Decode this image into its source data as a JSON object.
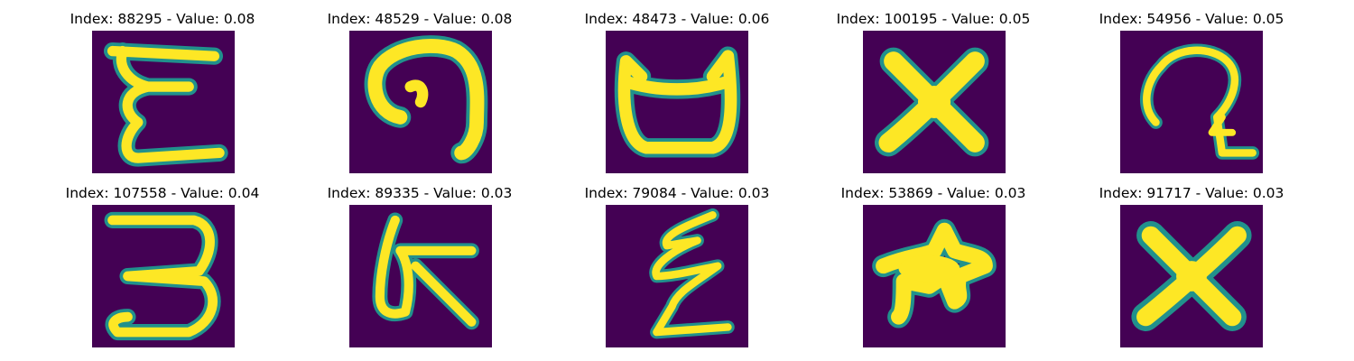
{
  "figure": {
    "background_color": "#ffffff",
    "colormap": [
      "#440154",
      "#3b528b",
      "#21918c",
      "#5ec962",
      "#fde725"
    ],
    "panels": [
      {
        "index": "88295",
        "value": "0.08",
        "title": "Index: 88295 - Value: 0.08",
        "glyph": "epsilon-like character"
      },
      {
        "index": "48529",
        "value": "0.08",
        "title": "Index: 48529 - Value: 0.08",
        "glyph": "hook curve"
      },
      {
        "index": "48473",
        "value": "0.06",
        "title": "Index: 48473 - Value: 0.06",
        "glyph": "cup shape"
      },
      {
        "index": "100195",
        "value": "0.05",
        "title": "Index: 100195 - Value: 0.05",
        "glyph": "x cross"
      },
      {
        "index": "54956",
        "value": "0.05",
        "title": "Index: 54956 - Value: 0.05",
        "glyph": "loop with tail"
      },
      {
        "index": "107558",
        "value": "0.04",
        "title": "Index: 107558 - Value: 0.04",
        "glyph": "number 3 like"
      },
      {
        "index": "89335",
        "value": "0.03",
        "title": "Index: 89335 - Value: 0.03",
        "glyph": "symbol with stem"
      },
      {
        "index": "79084",
        "value": "0.03",
        "title": "Index: 79084 - Value: 0.03",
        "glyph": "zigzag stroke"
      },
      {
        "index": "53869",
        "value": "0.03",
        "title": "Index: 53869 - Value: 0.03",
        "glyph": "star blob"
      },
      {
        "index": "91717",
        "value": "0.03",
        "title": "Index: 91717 - Value: 0.03",
        "glyph": "x cross"
      }
    ]
  }
}
